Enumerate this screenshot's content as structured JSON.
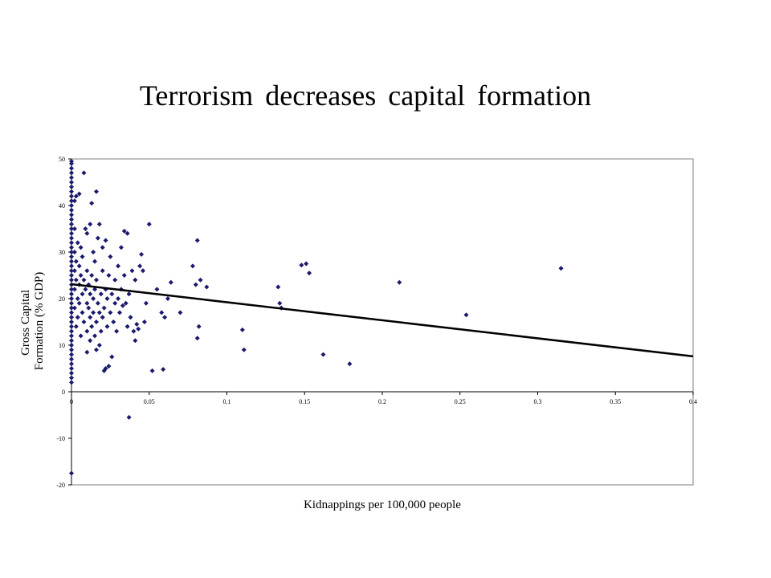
{
  "slide": {
    "title": "Terrorism decreases capital formation"
  },
  "chart_data": {
    "type": "scatter",
    "xlabel": "Kidnappings per 100,000 people",
    "ylabel_lines": [
      "Gross Capital",
      "Formation (% GDP)"
    ],
    "xlim": [
      0,
      0.4
    ],
    "ylim": [
      -20,
      50
    ],
    "x_ticks": [
      0,
      0.05,
      0.1,
      0.15,
      0.2,
      0.25,
      0.3,
      0.35,
      0.4
    ],
    "x_tick_labels": [
      "0",
      "0.05",
      "0.1",
      "0.15",
      "0.2",
      "0.25",
      "0.3",
      "0.35",
      "0.4"
    ],
    "y_ticks": [
      -20,
      -10,
      0,
      10,
      20,
      30,
      40,
      50
    ],
    "y_tick_labels": [
      "-20",
      "-10",
      "0",
      "10",
      "20",
      "30",
      "40",
      "50"
    ],
    "grid": false,
    "legend": "none",
    "marker_color": "#1a1a6e",
    "trend_color": "#000000",
    "trendline": {
      "x": [
        0,
        0.4
      ],
      "y": [
        23.1,
        7.6
      ]
    },
    "points": [
      [
        0,
        -17.5
      ],
      [
        0,
        2
      ],
      [
        0,
        3
      ],
      [
        0,
        4
      ],
      [
        0,
        5
      ],
      [
        0,
        6
      ],
      [
        0,
        7
      ],
      [
        0,
        8
      ],
      [
        0,
        9
      ],
      [
        0,
        10
      ],
      [
        0,
        11
      ],
      [
        0,
        12
      ],
      [
        0,
        13
      ],
      [
        0,
        14
      ],
      [
        0,
        15
      ],
      [
        0,
        16
      ],
      [
        0,
        17
      ],
      [
        0,
        18
      ],
      [
        0,
        19
      ],
      [
        0,
        20
      ],
      [
        0,
        21
      ],
      [
        0,
        22
      ],
      [
        0,
        23
      ],
      [
        0,
        24
      ],
      [
        0,
        25
      ],
      [
        0,
        26
      ],
      [
        0,
        27
      ],
      [
        0,
        28
      ],
      [
        0,
        29
      ],
      [
        0,
        30
      ],
      [
        0,
        31
      ],
      [
        0,
        32
      ],
      [
        0,
        33
      ],
      [
        0,
        34
      ],
      [
        0,
        35
      ],
      [
        0,
        36
      ],
      [
        0,
        37
      ],
      [
        0,
        38
      ],
      [
        0,
        39
      ],
      [
        0,
        40
      ],
      [
        0,
        41
      ],
      [
        0,
        42
      ],
      [
        0,
        43
      ],
      [
        0,
        44
      ],
      [
        0,
        45
      ],
      [
        0,
        46
      ],
      [
        0,
        47
      ],
      [
        0,
        48
      ],
      [
        0,
        49
      ],
      [
        0,
        49.5
      ],
      [
        0.002,
        18
      ],
      [
        0.002,
        22
      ],
      [
        0.002,
        26
      ],
      [
        0.002,
        30
      ],
      [
        0.002,
        35
      ],
      [
        0.002,
        41
      ],
      [
        0.003,
        14
      ],
      [
        0.003,
        24
      ],
      [
        0.003,
        28
      ],
      [
        0.003,
        42
      ],
      [
        0.004,
        16
      ],
      [
        0.004,
        20
      ],
      [
        0.004,
        32
      ],
      [
        0.005,
        19
      ],
      [
        0.005,
        23
      ],
      [
        0.005,
        27
      ],
      [
        0.005,
        42.5
      ],
      [
        0.006,
        12
      ],
      [
        0.006,
        25
      ],
      [
        0.006,
        31
      ],
      [
        0.007,
        17
      ],
      [
        0.007,
        21
      ],
      [
        0.007,
        29
      ],
      [
        0.008,
        15
      ],
      [
        0.008,
        24
      ],
      [
        0.008,
        47
      ],
      [
        0.009,
        22
      ],
      [
        0.009,
        35
      ],
      [
        0.01,
        8.5
      ],
      [
        0.01,
        13
      ],
      [
        0.01,
        19
      ],
      [
        0.01,
        26
      ],
      [
        0.01,
        34
      ],
      [
        0.011,
        18
      ],
      [
        0.011,
        23
      ],
      [
        0.012,
        11
      ],
      [
        0.012,
        16
      ],
      [
        0.012,
        21
      ],
      [
        0.012,
        36
      ],
      [
        0.013,
        14
      ],
      [
        0.013,
        25
      ],
      [
        0.013,
        40.5
      ],
      [
        0.014,
        17
      ],
      [
        0.014,
        20
      ],
      [
        0.014,
        30
      ],
      [
        0.015,
        12
      ],
      [
        0.015,
        22
      ],
      [
        0.015,
        28
      ],
      [
        0.016,
        9
      ],
      [
        0.016,
        15
      ],
      [
        0.016,
        24
      ],
      [
        0.016,
        43
      ],
      [
        0.017,
        19
      ],
      [
        0.017,
        33
      ],
      [
        0.018,
        10
      ],
      [
        0.018,
        17
      ],
      [
        0.018,
        36
      ],
      [
        0.019,
        13
      ],
      [
        0.019,
        21
      ],
      [
        0.02,
        16
      ],
      [
        0.02,
        26
      ],
      [
        0.02,
        31
      ],
      [
        0.021,
        4.5
      ],
      [
        0.021,
        18
      ],
      [
        0.022,
        5
      ],
      [
        0.022,
        22
      ],
      [
        0.022,
        32.5
      ],
      [
        0.023,
        14
      ],
      [
        0.023,
        20
      ],
      [
        0.024,
        5.5
      ],
      [
        0.024,
        25
      ],
      [
        0.025,
        17
      ],
      [
        0.025,
        29
      ],
      [
        0.026,
        7.5
      ],
      [
        0.026,
        21
      ],
      [
        0.027,
        15
      ],
      [
        0.028,
        19
      ],
      [
        0.028,
        24
      ],
      [
        0.029,
        13
      ],
      [
        0.03,
        20
      ],
      [
        0.03,
        27
      ],
      [
        0.031,
        17
      ],
      [
        0.032,
        22
      ],
      [
        0.032,
        31
      ],
      [
        0.033,
        18.5
      ],
      [
        0.034,
        25
      ],
      [
        0.034,
        34.5
      ],
      [
        0.035,
        19
      ],
      [
        0.036,
        14
      ],
      [
        0.036,
        34
      ],
      [
        0.037,
        -5.5
      ],
      [
        0.037,
        21
      ],
      [
        0.038,
        16
      ],
      [
        0.039,
        26
      ],
      [
        0.04,
        13
      ],
      [
        0.041,
        11
      ],
      [
        0.041,
        24
      ],
      [
        0.042,
        14.5
      ],
      [
        0.043,
        13.5
      ],
      [
        0.044,
        27
      ],
      [
        0.045,
        29.5
      ],
      [
        0.046,
        26
      ],
      [
        0.047,
        15
      ],
      [
        0.048,
        19
      ],
      [
        0.05,
        36
      ],
      [
        0.052,
        4.5
      ],
      [
        0.055,
        22
      ],
      [
        0.058,
        17
      ],
      [
        0.059,
        4.8
      ],
      [
        0.06,
        16
      ],
      [
        0.062,
        20
      ],
      [
        0.064,
        23.5
      ],
      [
        0.07,
        17
      ],
      [
        0.078,
        27
      ],
      [
        0.08,
        23
      ],
      [
        0.081,
        32.5
      ],
      [
        0.081,
        11.5
      ],
      [
        0.082,
        14
      ],
      [
        0.083,
        24
      ],
      [
        0.087,
        22.5
      ],
      [
        0.11,
        13.3
      ],
      [
        0.111,
        9
      ],
      [
        0.133,
        22.5
      ],
      [
        0.134,
        19
      ],
      [
        0.135,
        18
      ],
      [
        0.148,
        27.2
      ],
      [
        0.151,
        27.5
      ],
      [
        0.153,
        25.5
      ],
      [
        0.162,
        8
      ],
      [
        0.179,
        6
      ],
      [
        0.211,
        23.5
      ],
      [
        0.254,
        16.5
      ],
      [
        0.315,
        26.5
      ]
    ]
  }
}
